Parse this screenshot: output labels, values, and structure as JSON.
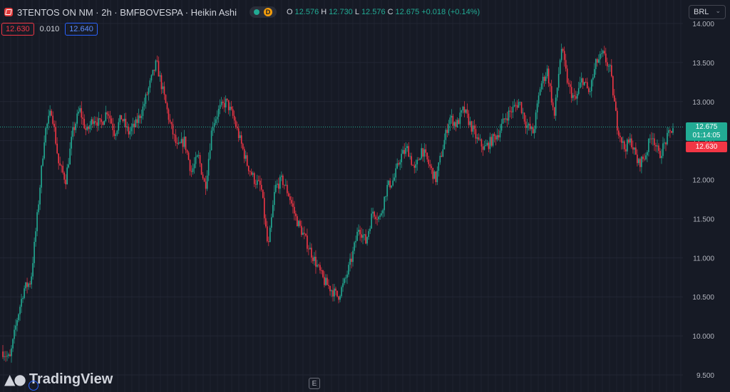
{
  "header": {
    "symbol_title": "3TENTOS ON NM · 2h · BMFBOVESPA · Heikin Ashi",
    "market_status_icon": "market-open-dot-icon",
    "delay_badge": "D",
    "ohlc": {
      "open_label": "O",
      "open": "12.576",
      "high_label": "H",
      "high": "12.730",
      "low_label": "L",
      "low": "12.576",
      "close_label": "C",
      "close": "12.675",
      "change": "+0.018 (+0.14%)"
    }
  },
  "quote": {
    "bid": "12.630",
    "spread": "0.010",
    "ask": "12.640"
  },
  "currency": {
    "label": "BRL",
    "icon": "chevron-down-icon"
  },
  "axis_labels": {
    "last_price": "12.675",
    "countdown": "01:14:05",
    "bid_price": "12.630"
  },
  "footer": {
    "brand": "TradingView",
    "events_label": "E"
  },
  "colors": {
    "background": "#161a25",
    "up": "#22ab94",
    "down": "#f23645",
    "ask": "#2962ff",
    "text": "#d1d4dc",
    "grid": "#1e2230"
  },
  "chart_data": {
    "type": "candlestick",
    "series_style": "Heikin Ashi",
    "ylim": [
      9.5,
      14.0
    ],
    "yticks": [
      "9.500",
      "10.000",
      "10.500",
      "11.000",
      "11.500",
      "12.000",
      "12.500",
      "13.000",
      "13.500",
      "14.000"
    ],
    "last_price": 12.675,
    "bid_line": 12.63,
    "close_path": [
      9.8,
      9.7,
      10.2,
      10.6,
      10.7,
      11.6,
      12.6,
      12.9,
      12.2,
      12.0,
      12.6,
      12.9,
      12.6,
      12.8,
      12.7,
      12.9,
      12.6,
      12.8,
      12.6,
      12.7,
      12.9,
      13.2,
      13.5,
      13.1,
      12.7,
      12.4,
      12.5,
      12.1,
      12.3,
      11.9,
      12.7,
      12.9,
      13.0,
      12.8,
      12.5,
      12.2,
      12.0,
      11.9,
      11.1,
      11.9,
      12.0,
      11.8,
      11.5,
      11.3,
      11.1,
      10.9,
      10.7,
      10.6,
      10.5,
      10.7,
      11.0,
      11.4,
      11.2,
      11.6,
      11.5,
      11.9,
      12.0,
      12.3,
      12.4,
      12.1,
      12.4,
      12.2,
      12.0,
      12.4,
      12.8,
      12.7,
      12.9,
      12.7,
      12.5,
      12.4,
      12.5,
      12.6,
      12.8,
      12.9,
      13.0,
      12.7,
      12.6,
      13.2,
      13.4,
      12.8,
      13.7,
      13.2,
      13.0,
      13.3,
      13.1,
      13.5,
      13.6,
      13.4,
      12.7,
      12.4,
      12.5,
      12.2,
      12.3,
      12.6,
      12.3,
      12.5,
      12.675
    ]
  }
}
